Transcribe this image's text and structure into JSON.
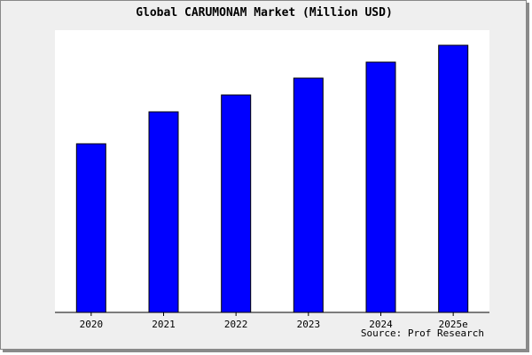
{
  "chart_data": {
    "type": "bar",
    "title": "Global CARUMONAM Market (Million USD)",
    "categories": [
      "2020",
      "2021",
      "2022",
      "2023",
      "2024",
      "2025e"
    ],
    "values": [
      190,
      226,
      245,
      264,
      282,
      301
    ],
    "ylim": [
      0,
      301
    ],
    "grid": false,
    "xlabel": "",
    "ylabel": "",
    "bar_color": "#0000ff",
    "annotation": "Source: Prof Research"
  }
}
